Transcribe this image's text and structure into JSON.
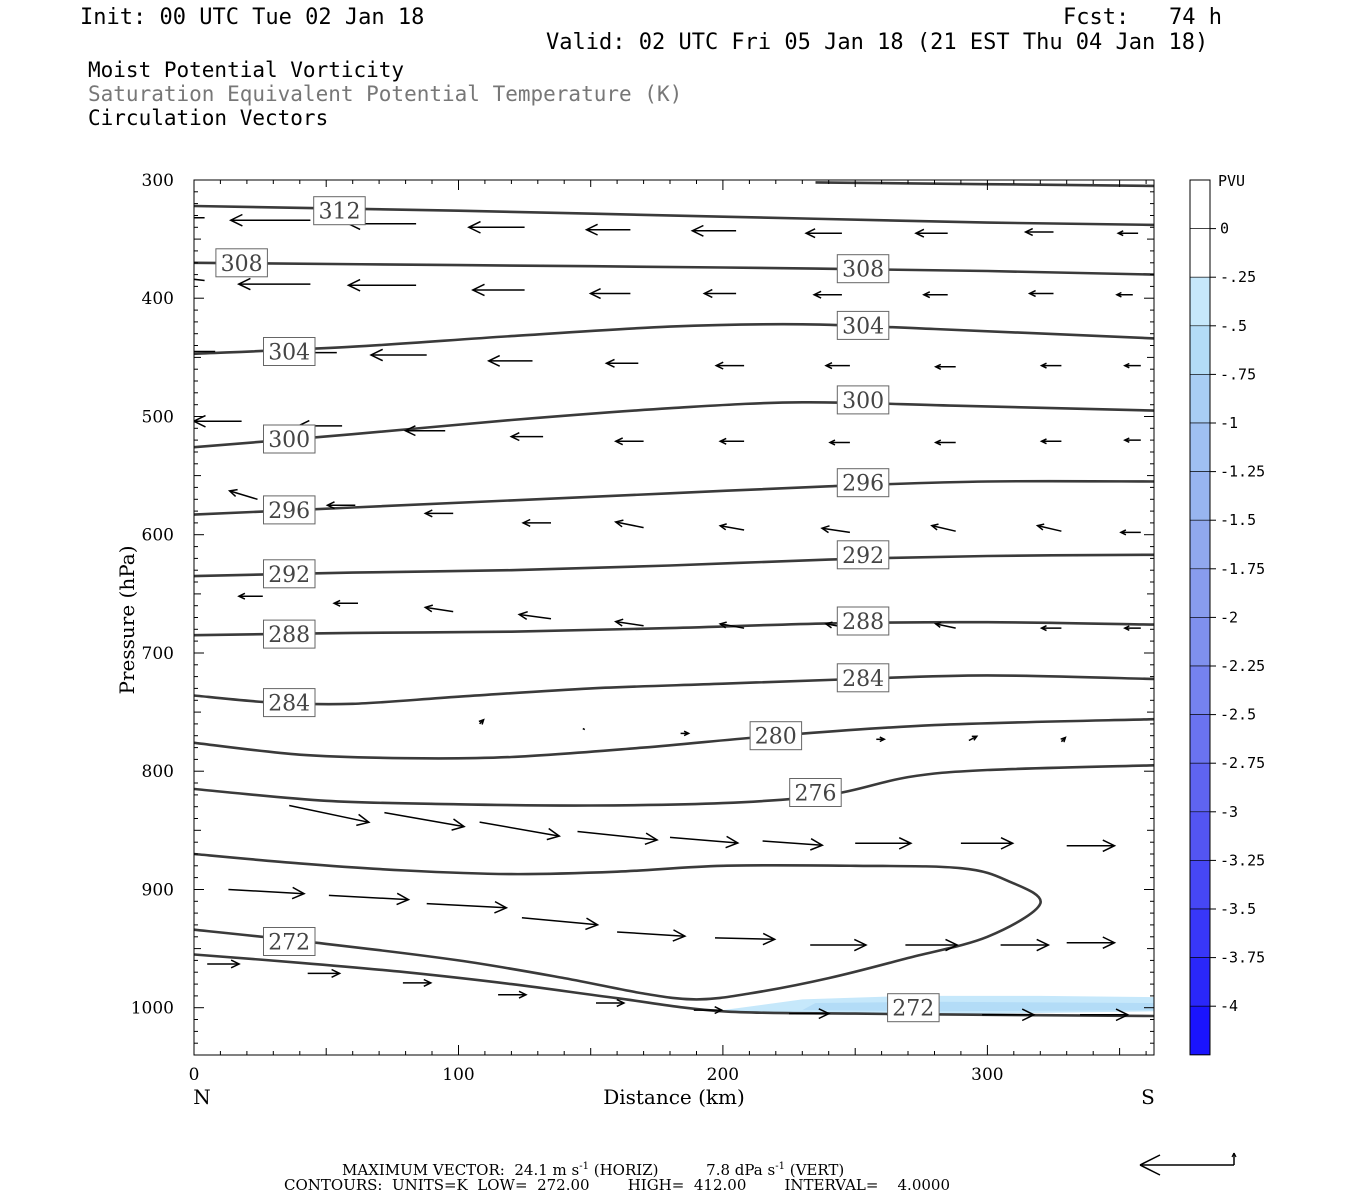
{
  "header": {
    "init": "Init: 00 UTC Tue 02 Jan 18",
    "fcst": "Fcst:   74 h",
    "valid": "Valid: 02 UTC Fri 05 Jan 18 (21 EST Thu 04 Jan 18)",
    "fields": [
      "Moist Potential Vorticity",
      "Saturation Equivalent Potential Temperature (K)",
      "Circulation Vectors"
    ]
  },
  "colors": {
    "contour": "#3a3a3a",
    "vector": "#000000",
    "pv_shading": [
      "#c6e8fb",
      "#b3dcf7"
    ]
  },
  "chart_data": {
    "type": "cross-section",
    "xlabel": "Distance (km)",
    "ylabel": "Pressure (hPa)",
    "xlim": [
      0,
      363
    ],
    "ylim": [
      1040,
      300
    ],
    "x_ticks": [
      0,
      100,
      200,
      300
    ],
    "y_ticks": [
      300,
      400,
      500,
      600,
      700,
      800,
      900,
      1000
    ],
    "x_end_labels": {
      "left": "N",
      "right": "S"
    },
    "contour_units": "K",
    "contour_interval": 4,
    "contours": [
      {
        "label": "312",
        "points": [
          [
            0,
            322
          ],
          [
            100,
            326
          ],
          [
            200,
            331
          ],
          [
            300,
            336
          ],
          [
            363,
            338
          ]
        ],
        "label_at": [
          55,
          326
        ]
      },
      {
        "label": "308",
        "points": [
          [
            0,
            370
          ],
          [
            100,
            372
          ],
          [
            200,
            374
          ],
          [
            300,
            377
          ],
          [
            363,
            380
          ]
        ],
        "label_at": [
          18,
          370
        ]
      },
      {
        "label": "304",
        "points": [
          [
            0,
            447
          ],
          [
            60,
            441
          ],
          [
            120,
            432
          ],
          [
            180,
            424
          ],
          [
            230,
            422
          ],
          [
            280,
            426
          ],
          [
            363,
            434
          ]
        ],
        "label_at": [
          36,
          445
        ]
      },
      {
        "label": "308",
        "points": [
          [
            235,
            302
          ],
          [
            363,
            305
          ]
        ],
        "label_at": null
      },
      {
        "label": "300",
        "points": [
          [
            0,
            526
          ],
          [
            60,
            515
          ],
          [
            120,
            503
          ],
          [
            180,
            493
          ],
          [
            230,
            488
          ],
          [
            290,
            491
          ],
          [
            363,
            495
          ]
        ],
        "label_at": [
          36,
          519
        ]
      },
      {
        "label": "296",
        "points": [
          [
            0,
            583
          ],
          [
            60,
            577
          ],
          [
            120,
            571
          ],
          [
            180,
            565
          ],
          [
            240,
            559
          ],
          [
            300,
            555
          ],
          [
            363,
            555
          ]
        ],
        "label_at": [
          36,
          579
        ]
      },
      {
        "label": "292",
        "points": [
          [
            0,
            635
          ],
          [
            60,
            632
          ],
          [
            120,
            630
          ],
          [
            180,
            626
          ],
          [
            240,
            621
          ],
          [
            300,
            618
          ],
          [
            363,
            617
          ]
        ],
        "label_at": [
          36,
          633
        ]
      },
      {
        "label": "288",
        "points": [
          [
            0,
            685
          ],
          [
            60,
            683
          ],
          [
            120,
            682
          ],
          [
            180,
            679
          ],
          [
            240,
            675
          ],
          [
            300,
            674
          ],
          [
            363,
            676
          ]
        ],
        "label_at": [
          36,
          684
        ]
      },
      {
        "label": "284",
        "points": [
          [
            0,
            736
          ],
          [
            30,
            742
          ],
          [
            60,
            743
          ],
          [
            100,
            737
          ],
          [
            150,
            730
          ],
          [
            200,
            726
          ],
          [
            250,
            722
          ],
          [
            300,
            719
          ],
          [
            363,
            722
          ]
        ],
        "label_at": [
          36,
          742
        ]
      },
      {
        "label": "280",
        "points": [
          [
            0,
            776
          ],
          [
            40,
            786
          ],
          [
            80,
            789
          ],
          [
            120,
            788
          ],
          [
            170,
            780
          ],
          [
            220,
            770
          ],
          [
            280,
            761
          ],
          [
            363,
            756
          ]
        ],
        "label_at": [
          220,
          770
        ]
      },
      {
        "label": "276",
        "points": [
          [
            0,
            815
          ],
          [
            50,
            825
          ],
          [
            100,
            828
          ],
          [
            150,
            829
          ],
          [
            200,
            827
          ],
          [
            240,
            820
          ],
          [
            270,
            805
          ],
          [
            300,
            799
          ],
          [
            363,
            795
          ]
        ],
        "label_at": [
          235,
          818
        ]
      },
      {
        "label": "272",
        "points": [
          [
            0,
            870
          ],
          [
            40,
            878
          ],
          [
            80,
            884
          ],
          [
            120,
            887
          ],
          [
            160,
            885
          ],
          [
            200,
            880
          ],
          [
            250,
            880
          ],
          [
            290,
            882
          ],
          [
            308,
            893
          ],
          [
            320,
            912
          ],
          [
            300,
            940
          ],
          [
            270,
            958
          ],
          [
            240,
            975
          ],
          [
            210,
            988
          ],
          [
            190,
            993
          ],
          [
            170,
            988
          ],
          [
            140,
            975
          ],
          [
            100,
            960
          ],
          [
            50,
            946
          ],
          [
            0,
            934
          ]
        ],
        "label_at": [
          36,
          944
        ]
      },
      {
        "label": "",
        "points": [
          [
            0,
            955
          ],
          [
            40,
            962
          ],
          [
            80,
            970
          ],
          [
            120,
            980
          ],
          [
            160,
            992
          ],
          [
            200,
            1003
          ],
          [
            250,
            1005
          ],
          [
            300,
            1006
          ],
          [
            363,
            1007
          ]
        ],
        "label_at": null
      }
    ],
    "extra_contour_labels": [
      {
        "label": "308",
        "at": [
          253,
          375
        ]
      },
      {
        "label": "304",
        "at": [
          253,
          423
        ]
      },
      {
        "label": "300",
        "at": [
          253,
          486
        ]
      },
      {
        "label": "296",
        "at": [
          253,
          556
        ]
      },
      {
        "label": "292",
        "at": [
          253,
          617
        ]
      },
      {
        "label": "288",
        "at": [
          253,
          673
        ]
      },
      {
        "label": "284",
        "at": [
          253,
          721
        ]
      },
      {
        "label": "272",
        "at": [
          272,
          1000
        ]
      }
    ],
    "pv_shading_regions": [
      {
        "points": [
          [
            200,
            1002
          ],
          [
            230,
            993
          ],
          [
            270,
            990
          ],
          [
            320,
            990
          ],
          [
            363,
            991
          ],
          [
            363,
            1003
          ],
          [
            300,
            1005
          ],
          [
            200,
            1004
          ]
        ]
      },
      {
        "points": [
          [
            235,
            996
          ],
          [
            280,
            995
          ],
          [
            363,
            996
          ],
          [
            363,
            1002
          ],
          [
            280,
            1003
          ],
          [
            230,
            1002
          ]
        ]
      }
    ],
    "vector_scale": {
      "horiz_max": 24.1,
      "vert_max": 7.8
    },
    "vectors": [
      {
        "x": 4,
        "p": 332,
        "u": -24,
        "w": 0
      },
      {
        "x": 44,
        "p": 334,
        "u": -20,
        "w": 0
      },
      {
        "x": 84,
        "p": 337,
        "u": -17,
        "w": 0
      },
      {
        "x": 125,
        "p": 340,
        "u": -14,
        "w": 0
      },
      {
        "x": 165,
        "p": 342,
        "u": -11,
        "w": 0
      },
      {
        "x": 205,
        "p": 343,
        "u": -11,
        "w": 0
      },
      {
        "x": 245,
        "p": 345,
        "u": -9,
        "w": 0
      },
      {
        "x": 285,
        "p": 345,
        "u": -8,
        "w": 0
      },
      {
        "x": 325,
        "p": 344,
        "u": -7,
        "w": 0
      },
      {
        "x": 357,
        "p": 345,
        "u": -5,
        "w": 0
      },
      {
        "x": 4,
        "p": 385,
        "u": -22,
        "w": 0.7
      },
      {
        "x": 44,
        "p": 388,
        "u": -18,
        "w": 0
      },
      {
        "x": 84,
        "p": 389,
        "u": -17,
        "w": 0
      },
      {
        "x": 125,
        "p": 393,
        "u": -13,
        "w": 0
      },
      {
        "x": 165,
        "p": 396,
        "u": -10,
        "w": 0
      },
      {
        "x": 205,
        "p": 396,
        "u": -8,
        "w": 0
      },
      {
        "x": 245,
        "p": 397,
        "u": -7,
        "w": 0
      },
      {
        "x": 285,
        "p": 397,
        "u": -6,
        "w": 0
      },
      {
        "x": 325,
        "p": 396,
        "u": -6,
        "w": 0
      },
      {
        "x": 355,
        "p": 397,
        "u": -4,
        "w": 0
      },
      {
        "x": 8,
        "p": 445,
        "u": -20,
        "w": 0
      },
      {
        "x": 54,
        "p": 446,
        "u": -18,
        "w": 0
      },
      {
        "x": 88,
        "p": 448,
        "u": -14,
        "w": 0
      },
      {
        "x": 128,
        "p": 453,
        "u": -11,
        "w": 0
      },
      {
        "x": 168,
        "p": 455,
        "u": -8,
        "w": 0
      },
      {
        "x": 208,
        "p": 457,
        "u": -7,
        "w": 0
      },
      {
        "x": 248,
        "p": 457,
        "u": -6,
        "w": 0
      },
      {
        "x": 288,
        "p": 458,
        "u": -5,
        "w": 0
      },
      {
        "x": 328,
        "p": 457,
        "u": -5,
        "w": 0
      },
      {
        "x": 358,
        "p": 457,
        "u": -4,
        "w": 0
      },
      {
        "x": 18,
        "p": 504,
        "u": -12,
        "w": 0
      },
      {
        "x": 56,
        "p": 508,
        "u": -11,
        "w": 0
      },
      {
        "x": 95,
        "p": 512,
        "u": -10,
        "w": 0
      },
      {
        "x": 132,
        "p": 517,
        "u": -8,
        "w": 0
      },
      {
        "x": 170,
        "p": 521,
        "u": -7,
        "w": 0
      },
      {
        "x": 208,
        "p": 521,
        "u": -6,
        "w": 0
      },
      {
        "x": 248,
        "p": 522,
        "u": -5,
        "w": 0
      },
      {
        "x": 288,
        "p": 522,
        "u": -5,
        "w": 0
      },
      {
        "x": 328,
        "p": 521,
        "u": -5,
        "w": 0
      },
      {
        "x": 358,
        "p": 520,
        "u": -4,
        "w": 0
      },
      {
        "x": 24,
        "p": 570,
        "u": -7,
        "w": 0.6
      },
      {
        "x": 61,
        "p": 575,
        "u": -7,
        "w": 0
      },
      {
        "x": 98,
        "p": 582,
        "u": -7,
        "w": 0
      },
      {
        "x": 135,
        "p": 590,
        "u": -7,
        "w": 0
      },
      {
        "x": 170,
        "p": 594,
        "u": -7,
        "w": 0.4
      },
      {
        "x": 208,
        "p": 596,
        "u": -6,
        "w": 0.3
      },
      {
        "x": 248,
        "p": 598,
        "u": -7,
        "w": 0.3
      },
      {
        "x": 288,
        "p": 597,
        "u": -6,
        "w": 0.4
      },
      {
        "x": 328,
        "p": 597,
        "u": -6,
        "w": 0.4
      },
      {
        "x": 358,
        "p": 598,
        "u": -5,
        "w": 0
      },
      {
        "x": 26,
        "p": 652,
        "u": -6,
        "w": 0
      },
      {
        "x": 62,
        "p": 658,
        "u": -6,
        "w": 0
      },
      {
        "x": 98,
        "p": 665,
        "u": -7,
        "w": 0.3
      },
      {
        "x": 135,
        "p": 671,
        "u": -8,
        "w": 0.3
      },
      {
        "x": 170,
        "p": 677,
        "u": -7,
        "w": 0.3
      },
      {
        "x": 208,
        "p": 679,
        "u": -6,
        "w": 0.3
      },
      {
        "x": 248,
        "p": 679,
        "u": -6,
        "w": 0.3
      },
      {
        "x": 288,
        "p": 679,
        "u": -5,
        "w": 0.3
      },
      {
        "x": 328,
        "p": 679,
        "u": -5,
        "w": 0
      },
      {
        "x": 358,
        "p": 679,
        "u": -4,
        "w": 0
      },
      {
        "x": 36,
        "p": 829,
        "u": 20,
        "w": -1.2
      },
      {
        "x": 72,
        "p": 835,
        "u": 20,
        "w": -1
      },
      {
        "x": 108,
        "p": 843,
        "u": 20,
        "w": -1
      },
      {
        "x": 145,
        "p": 851,
        "u": 20,
        "w": -0.6
      },
      {
        "x": 180,
        "p": 856,
        "u": 17,
        "w": -0.4
      },
      {
        "x": 215,
        "p": 859,
        "u": 15,
        "w": -0.3
      },
      {
        "x": 250,
        "p": 861,
        "u": 14,
        "w": 0
      },
      {
        "x": 290,
        "p": 861,
        "u": 13,
        "w": 0
      },
      {
        "x": 330,
        "p": 863,
        "u": 12,
        "w": 0
      },
      {
        "x": 13,
        "p": 900,
        "u": 19,
        "w": -0.3
      },
      {
        "x": 51,
        "p": 905,
        "u": 20,
        "w": -0.3
      },
      {
        "x": 88,
        "p": 912,
        "u": 20,
        "w": -0.3
      },
      {
        "x": 124,
        "p": 924,
        "u": 19,
        "w": -0.5
      },
      {
        "x": 160,
        "p": 936,
        "u": 17,
        "w": -0.3
      },
      {
        "x": 197,
        "p": 941,
        "u": 15,
        "w": -0.1
      },
      {
        "x": 233,
        "p": 947,
        "u": 14,
        "w": 0
      },
      {
        "x": 269,
        "p": 947,
        "u": 13,
        "w": 0
      },
      {
        "x": 305,
        "p": 947,
        "u": 12,
        "w": 0
      },
      {
        "x": 330,
        "p": 945,
        "u": 12,
        "w": 0
      },
      {
        "x": 5,
        "p": 963,
        "u": 8,
        "w": 0
      },
      {
        "x": 43,
        "p": 971,
        "u": 8,
        "w": 0
      },
      {
        "x": 79,
        "p": 979,
        "u": 7,
        "w": 0
      },
      {
        "x": 115,
        "p": 989,
        "u": 7,
        "w": 0
      },
      {
        "x": 152,
        "p": 996,
        "u": 7,
        "w": 0
      },
      {
        "x": 189,
        "p": 1002,
        "u": 7,
        "w": 0
      },
      {
        "x": 225,
        "p": 1005,
        "u": 10,
        "w": 0
      },
      {
        "x": 262,
        "p": 1006,
        "u": 13,
        "w": 0
      },
      {
        "x": 298,
        "p": 1006,
        "u": 13,
        "w": 0
      },
      {
        "x": 335,
        "p": 1006,
        "u": 12,
        "w": 0
      },
      {
        "x": 108,
        "p": 760,
        "u": 1,
        "w": 0.3
      },
      {
        "x": 147,
        "p": 764,
        "u": 1,
        "w": 0
      },
      {
        "x": 184,
        "p": 768,
        "u": 2,
        "w": 0
      },
      {
        "x": 258,
        "p": 773,
        "u": 2,
        "w": 0
      },
      {
        "x": 293,
        "p": 774,
        "u": 2,
        "w": 0.3
      },
      {
        "x": 328,
        "p": 775,
        "u": 1,
        "w": 0.3
      }
    ],
    "colorbar": {
      "unit": "PVU",
      "labels": [
        "0",
        "-.25",
        "-.5",
        "-.75",
        "-1",
        "-1.25",
        "-1.5",
        "-1.75",
        "-2",
        "-2.25",
        "-2.5",
        "-2.75",
        "-3",
        "-3.25",
        "-3.5",
        "-3.75",
        "-4"
      ],
      "colors": [
        "#ffffff",
        "#ffffff",
        "#c6e8fb",
        "#b3dcf7",
        "#a8cdf4",
        "#9fc0f2",
        "#98b5f0",
        "#90a8ee",
        "#889cee",
        "#7f90ee",
        "#7582ef",
        "#6a73f0",
        "#5f64f1",
        "#5355f3",
        "#4647f5",
        "#3837f8",
        "#2a27fa",
        "#1a14fd"
      ]
    }
  },
  "footer": {
    "max_vector": "MAXIMUM VECTOR:  24.1 m s",
    "max_vector_sup1": "-1",
    "max_vector_mid": " (HORIZ)          7.8 dPa s",
    "max_vector_sup2": "-1",
    "max_vector_end": " (VERT)",
    "contours": "CONTOURS:  UNITS=K  LOW=  272.00        HIGH=  412.00        INTERVAL=    4.0000"
  }
}
